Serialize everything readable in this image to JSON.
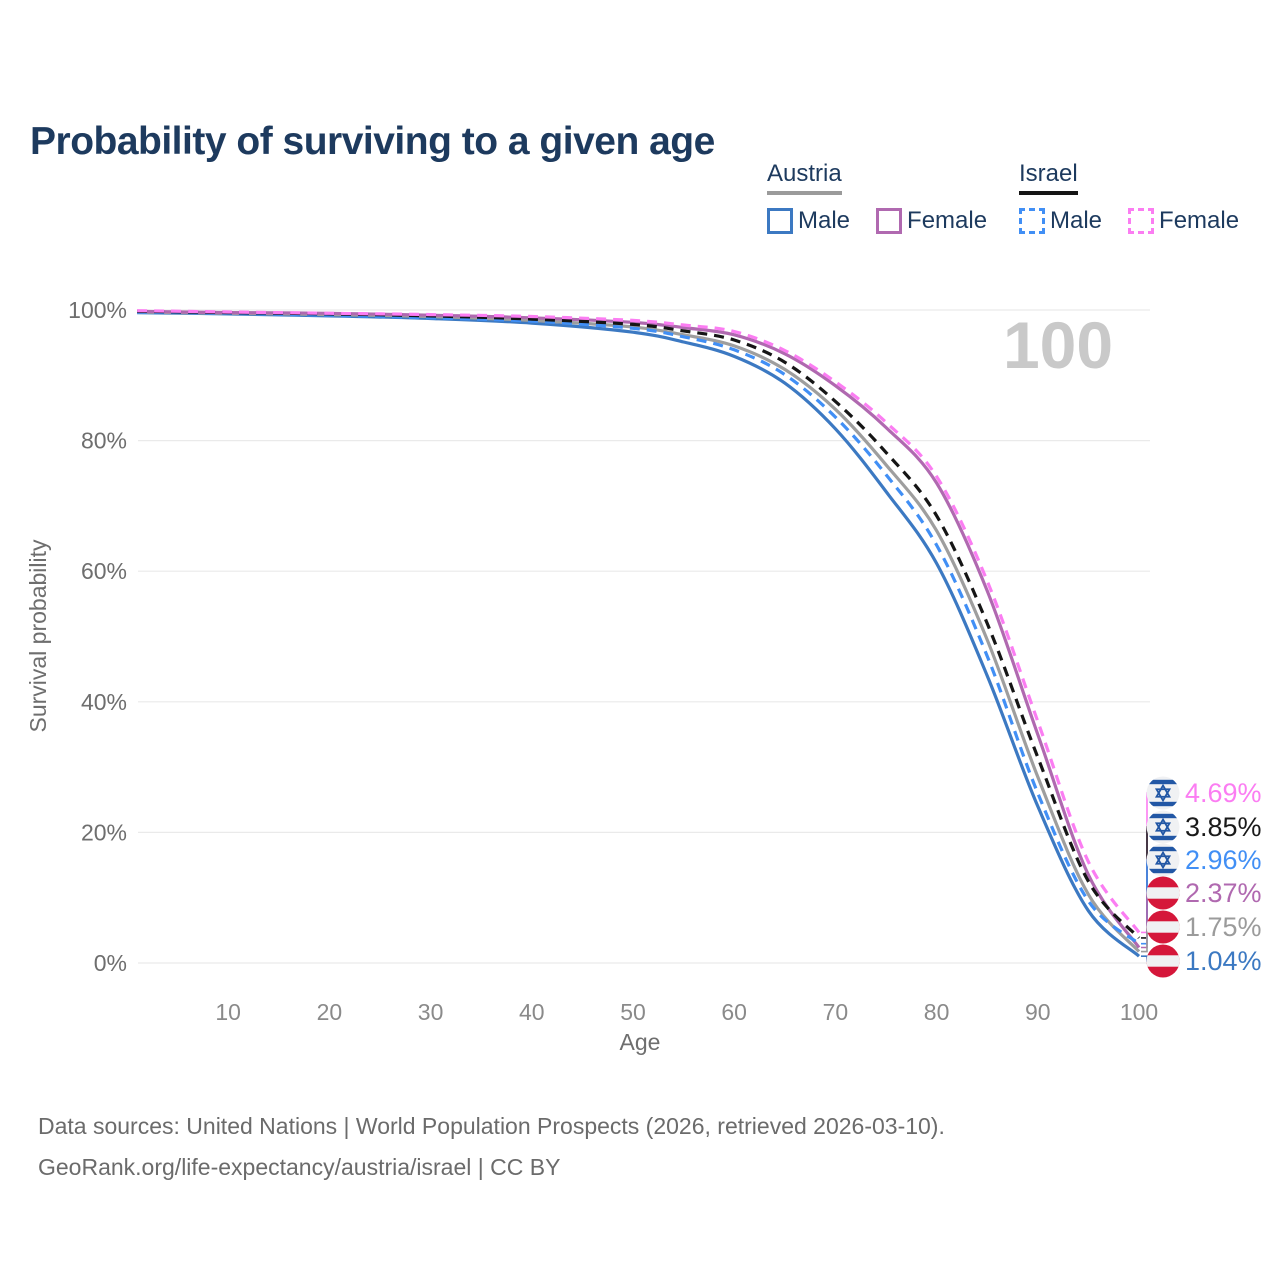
{
  "title": "Probability of surviving to a given age",
  "legend": {
    "groups": [
      {
        "label": "Austria",
        "line_style": "solid",
        "underline_color": "#9b9b9b",
        "items": [
          {
            "label": "Male",
            "color": "#3c79c2"
          },
          {
            "label": "Female",
            "color": "#b069b0"
          }
        ]
      },
      {
        "label": "Israel",
        "line_style": "dashed",
        "underline_color": "#151515",
        "items": [
          {
            "label": "Male",
            "color": "#418ff5"
          },
          {
            "label": "Female",
            "color": "#fb7df2"
          }
        ]
      }
    ]
  },
  "colors": {
    "title_text": "#1d3a5e",
    "legend_text": "#1d3a5e",
    "axis_text": "#6e6e6e",
    "tick_text": "#8a8a8a",
    "grid": "#eaeaea",
    "watermark": "#c9c9c9",
    "footer_text": "#6b6b6b",
    "israel_flag_blue": "#2257a5",
    "austria_flag_red": "#d5173a",
    "flag_white": "#f0f1f3"
  },
  "chart_data": {
    "type": "line",
    "title": "Probability of surviving to a given age",
    "xlabel": "Age",
    "ylabel": "Survival probability",
    "watermark": "100",
    "xlim": [
      0,
      100
    ],
    "ylim": [
      0,
      100
    ],
    "grid": "horizontal-only",
    "x_ticks": [
      {
        "label": "10",
        "value": 10
      },
      {
        "label": "20",
        "value": 20
      },
      {
        "label": "30",
        "value": 30
      },
      {
        "label": "40",
        "value": 40
      },
      {
        "label": "50",
        "value": 50
      },
      {
        "label": "60",
        "value": 60
      },
      {
        "label": "70",
        "value": 70
      },
      {
        "label": "80",
        "value": 80
      },
      {
        "label": "90",
        "value": 90
      },
      {
        "label": "100",
        "value": 100
      }
    ],
    "y_ticks": [
      {
        "label": "0%",
        "value": 0
      },
      {
        "label": "20%",
        "value": 20
      },
      {
        "label": "40%",
        "value": 40
      },
      {
        "label": "60%",
        "value": 60
      },
      {
        "label": "80%",
        "value": 80
      },
      {
        "label": "100%",
        "value": 100
      }
    ],
    "x": [
      1,
      10,
      20,
      30,
      40,
      50,
      55,
      60,
      65,
      70,
      75,
      80,
      85,
      90,
      95,
      100
    ],
    "series": [
      {
        "name": "austria-male",
        "country": "Austria",
        "group": "Male",
        "style": "solid",
        "color": "#3c79c2",
        "values": [
          99.6,
          99.4,
          99.1,
          98.7,
          98.0,
          96.6,
          95.1,
          92.9,
          88.8,
          81.8,
          72.2,
          61.2,
          44.0,
          24.0,
          8.0,
          1.04
        ],
        "end_label": "1.04%"
      },
      {
        "name": "austria-both-sexes",
        "country": "Austria",
        "group": "Both",
        "style": "solid",
        "color": "#9e9e9e",
        "values": [
          99.7,
          99.5,
          99.3,
          99.0,
          98.4,
          97.4,
          96.2,
          94.5,
          90.9,
          84.8,
          76.3,
          66.2,
          49.5,
          28.5,
          10.5,
          1.75
        ],
        "end_label": "1.75%"
      },
      {
        "name": "austria-female",
        "country": "Austria",
        "group": "Female",
        "style": "solid",
        "color": "#b069b0",
        "values": [
          99.8,
          99.6,
          99.5,
          99.2,
          98.8,
          98.1,
          97.3,
          96.2,
          93.3,
          88.4,
          82.0,
          73.5,
          57.0,
          35.0,
          13.5,
          2.37
        ],
        "end_label": "2.37%"
      },
      {
        "name": "israel-male",
        "country": "Israel",
        "group": "Male",
        "style": "dashed",
        "color": "#418ff5",
        "values": [
          99.7,
          99.5,
          99.2,
          98.8,
          98.3,
          97.2,
          95.9,
          93.9,
          90.1,
          83.6,
          74.8,
          64.0,
          47.0,
          26.0,
          9.5,
          2.96
        ],
        "end_label": "2.96%"
      },
      {
        "name": "israel-both-sexes",
        "country": "Israel",
        "group": "Both",
        "style": "dashed",
        "color": "#151515",
        "values": [
          99.8,
          99.6,
          99.4,
          99.1,
          98.6,
          97.8,
          96.8,
          95.4,
          92.0,
          86.0,
          78.2,
          68.5,
          52.0,
          31.5,
          12.5,
          3.85
        ],
        "end_label": "3.85%"
      },
      {
        "name": "israel-female",
        "country": "Israel",
        "group": "Female",
        "style": "dashed",
        "color": "#fb7df2",
        "values": [
          99.9,
          99.7,
          99.5,
          99.3,
          99.0,
          98.4,
          97.7,
          96.7,
          93.8,
          89.0,
          82.8,
          74.5,
          58.5,
          37.0,
          15.5,
          4.69
        ],
        "end_label": "4.69%"
      }
    ],
    "end_labels": [
      {
        "text": "4.69%",
        "value": 4.69,
        "color": "#fb7df2",
        "flag": "israel"
      },
      {
        "text": "3.85%",
        "value": 3.85,
        "color": "#1a1a1a",
        "flag": "israel"
      },
      {
        "text": "2.96%",
        "value": 2.96,
        "color": "#418ff5",
        "flag": "israel"
      },
      {
        "text": "2.37%",
        "value": 2.37,
        "color": "#b069b0",
        "flag": "austria"
      },
      {
        "text": "1.75%",
        "value": 1.75,
        "color": "#9b9b9b",
        "flag": "austria"
      },
      {
        "text": "1.04%",
        "value": 1.04,
        "color": "#3c79c2",
        "flag": "austria"
      }
    ],
    "legend_position": "top-right"
  },
  "footer": {
    "line1": "Data sources: United Nations | World Population Prospects (2026, retrieved 2026-03-10).",
    "line2": "GeoRank.org/life-expectancy/austria/israel | CC BY"
  }
}
